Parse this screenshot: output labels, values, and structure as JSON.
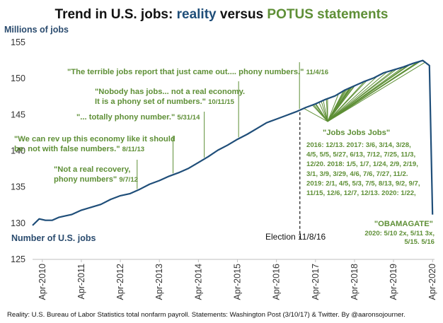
{
  "colors": {
    "reality": "#1f4e79",
    "potus": "#5e8f36",
    "title": "#111111",
    "axis_label": "#2a4b6e"
  },
  "title": {
    "part1": "Trend in U.S. jobs: ",
    "part2": "reality",
    "part3": " versus ",
    "part4": "POTUS statements"
  },
  "footer": "Reality: U.S. Bureau of Labor Statistics total nonfarm payroll. Statements: Washington Post (3/10/17) & Twitter. By @aaronsojourner.",
  "chart_data": {
    "type": "line",
    "title": "Trend in U.S. jobs: reality versus POTUS statements",
    "ylabel": "Millions of jobs",
    "series_label": "Number of U.S. jobs",
    "ylim": [
      125,
      155
    ],
    "yticks": [
      "125",
      "130",
      "135",
      "140",
      "145",
      "150",
      "155"
    ],
    "xlim": [
      2010.25,
      2020.3
    ],
    "xticks": [
      {
        "label": "Apr-2010",
        "x": 2010.25
      },
      {
        "label": "Apr-2011",
        "x": 2011.25
      },
      {
        "label": "Apr-2012",
        "x": 2012.25
      },
      {
        "label": "Apr-2013",
        "x": 2013.25
      },
      {
        "label": "Apr-2014",
        "x": 2014.25
      },
      {
        "label": "Apr-2015",
        "x": 2015.25
      },
      {
        "label": "Apr-2016",
        "x": 2016.25
      },
      {
        "label": "Apr-2017",
        "x": 2017.25
      },
      {
        "label": "Apr-2018",
        "x": 2018.25
      },
      {
        "label": "Apr-2019",
        "x": 2019.25
      },
      {
        "label": "Apr-2020",
        "x": 2020.25
      }
    ],
    "series": [
      {
        "name": "Total nonfarm payroll (millions)",
        "x": [
          2010.0,
          2010.17,
          2010.33,
          2010.5,
          2010.67,
          2010.83,
          2011.0,
          2011.25,
          2011.5,
          2011.75,
          2012.0,
          2012.25,
          2012.5,
          2012.75,
          2013.0,
          2013.25,
          2013.5,
          2013.75,
          2014.0,
          2014.25,
          2014.5,
          2014.75,
          2015.0,
          2015.25,
          2015.5,
          2015.75,
          2016.0,
          2016.25,
          2016.5,
          2016.75,
          2017.0,
          2017.25,
          2017.5,
          2017.75,
          2018.0,
          2018.25,
          2018.5,
          2018.75,
          2019.0,
          2019.25,
          2019.5,
          2019.75,
          2020.0,
          2020.17,
          2020.25
        ],
        "values": [
          129.7,
          130.6,
          130.4,
          130.4,
          130.8,
          131.0,
          131.2,
          131.8,
          132.2,
          132.6,
          133.3,
          133.8,
          134.1,
          134.7,
          135.4,
          135.9,
          136.5,
          137.0,
          137.6,
          138.4,
          139.2,
          140.1,
          140.8,
          141.6,
          142.3,
          143.1,
          143.9,
          144.4,
          144.9,
          145.4,
          146.0,
          146.5,
          147.1,
          147.6,
          148.4,
          149.0,
          149.6,
          150.1,
          150.8,
          151.2,
          151.6,
          152.1,
          152.5,
          151.8,
          131.2
        ]
      }
    ],
    "election": {
      "label": "Election 11/8/16",
      "x": 2016.85
    },
    "quotes": [
      {
        "lines": [
          "\"Not a real recovery,",
          "phony numbers\""
        ],
        "date": "9/7/12",
        "x": 2012.68
      },
      {
        "lines": [
          "\"We can rev up this economy like it should",
          "be, not with false numbers.\""
        ],
        "date": "8/11/13",
        "x": 2013.6
      },
      {
        "lines": [
          "\"... totally phony number.\""
        ],
        "date": "5/31/14",
        "x": 2014.4
      },
      {
        "lines": [
          "\"Nobody has jobs...  not a real economy.",
          "It is a phony set of numbers.\""
        ],
        "date": "10/11/15",
        "x": 2015.28
      },
      {
        "lines": [
          "\"The terrible jobs report that just came out.... phony numbers.\""
        ],
        "date": "11/4/16",
        "x": 2016.84
      }
    ],
    "jobs_quote": {
      "heading": "\"Jobs Jobs Jobs\"",
      "lines": [
        "2016: 12/13. 2017: 3/6, 3/14, 3/28,",
        "4/5, 5/5, 5/27, 6/13, 7/12, 7/25, 11/3,",
        "12/20. 2018: 1/5, 1/7, 1/24, 2/9, 2/19,",
        "3/1, 3/9, 3/29, 4/6, 7/6, 7/27, 11/2.",
        "2019: 2/1, 4/5, 5/3, 7/5, 8/13, 9/2, 9/7,",
        "11/15, 12/6, 12/7, 12/13. 2020: 1/22,"
      ],
      "fan_x": [
        2016.95,
        2017.17,
        2017.2,
        2017.24,
        2017.26,
        2017.34,
        2017.4,
        2017.45,
        2017.53,
        2017.56,
        2017.84,
        2017.97,
        2018.01,
        2018.02,
        2018.06,
        2018.11,
        2018.13,
        2018.16,
        2018.19,
        2018.24,
        2018.26,
        2018.51,
        2018.57,
        2018.84,
        2019.09,
        2019.26,
        2019.34,
        2019.51,
        2019.62,
        2019.67,
        2019.68,
        2019.87,
        2019.93,
        2019.94,
        2019.95,
        2020.06
      ]
    },
    "obamagate": {
      "heading": "\"OBAMAGATE\"",
      "lines": [
        "2020: 5/10 2x, 5/11 3x,",
        "5/15. 5/16"
      ]
    }
  }
}
